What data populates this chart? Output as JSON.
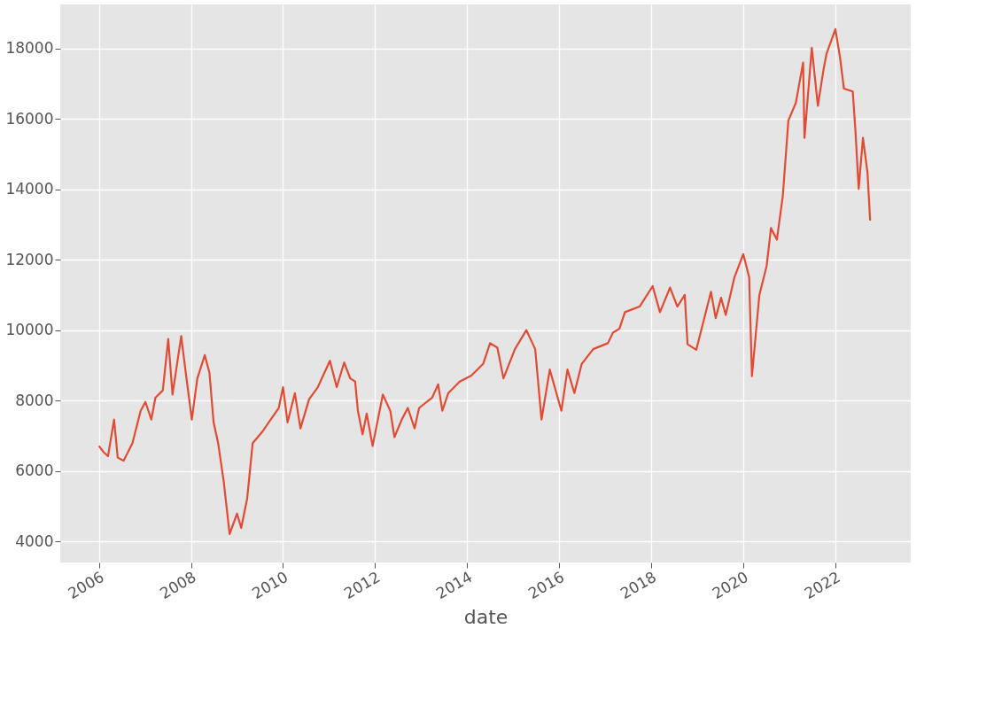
{
  "chart_data": {
    "type": "line",
    "xlabel": "date",
    "color": "#e24a33",
    "grid": true,
    "marker": "none",
    "line_style": "solid",
    "x": [
      "2006-01-01",
      "2006-02-06",
      "2006-03-14",
      "2006-05-01",
      "2006-05-30",
      "2006-07-16",
      "2006-09-24",
      "2006-11-28",
      "2007-01-05",
      "2007-02-21",
      "2007-03-25",
      "2007-05-23",
      "2007-07-05",
      "2007-08-08",
      "2007-09-13",
      "2007-10-16",
      "2007-11-21",
      "2008-01-08",
      "2008-02-21",
      "2008-04-20",
      "2008-05-27",
      "2008-06-29",
      "2008-08-04",
      "2008-09-17",
      "2008-11-03",
      "2009-01-01",
      "2009-02-03",
      "2009-03-22",
      "2009-05-05",
      "2009-07-24",
      "2009-09-09",
      "2009-11-28",
      "2010-01-01",
      "2010-02-06",
      "2010-04-05",
      "2010-05-19",
      "2010-07-27",
      "2010-10-04",
      "2011-01-08",
      "2011-03-03",
      "2011-05-01",
      "2011-06-18",
      "2011-07-27",
      "2011-08-18",
      "2011-09-24",
      "2011-10-27",
      "2011-12-13",
      "2012-03-03",
      "2012-05-01",
      "2012-06-03",
      "2012-07-31",
      "2012-09-17",
      "2012-11-10",
      "2012-12-16",
      "2013-03-29",
      "2013-05-16",
      "2013-06-18",
      "2013-08-04",
      "2013-11-03",
      "2014-02-03",
      "2014-05-08",
      "2014-07-02",
      "2014-08-29",
      "2014-10-16",
      "2015-01-15",
      "2015-04-16",
      "2015-06-25",
      "2015-08-14",
      "2015-10-19",
      "2016-01-19",
      "2016-03-07",
      "2016-05-01",
      "2016-06-28",
      "2016-09-27",
      "2017-01-22",
      "2017-03-03",
      "2017-04-23",
      "2017-06-06",
      "2017-10-01",
      "2018-01-12",
      "2018-03-11",
      "2018-05-30",
      "2018-07-27",
      "2018-09-24",
      "2018-10-16",
      "2018-12-24",
      "2019-04-20",
      "2019-05-27",
      "2019-07-09",
      "2019-08-15",
      "2019-10-23",
      "2020-01-01",
      "2020-02-17",
      "2020-03-10",
      "2020-05-08",
      "2020-07-05",
      "2020-08-08",
      "2020-09-24",
      "2020-11-10",
      "2020-12-24",
      "2021-02-21",
      "2021-04-20",
      "2021-05-01",
      "2021-06-28",
      "2021-08-15",
      "2021-10-01",
      "2021-10-23",
      "2022-01-01",
      "2022-02-06",
      "2022-03-10",
      "2022-05-19",
      "2022-06-10",
      "2022-07-05",
      "2022-08-08",
      "2022-09-13",
      "2022-10-04"
    ],
    "values": [
      6710,
      6540,
      6420,
      7460,
      6380,
      6290,
      6790,
      7710,
      7960,
      7460,
      8080,
      8290,
      9750,
      8170,
      9040,
      9830,
      8790,
      7460,
      8630,
      9290,
      8790,
      7380,
      6790,
      5710,
      4210,
      4790,
      4380,
      5210,
      6790,
      7130,
      7380,
      7790,
      8380,
      7380,
      8210,
      7210,
      8040,
      8380,
      9130,
      8380,
      9080,
      8630,
      8540,
      7710,
      7040,
      7630,
      6710,
      8170,
      7710,
      6960,
      7460,
      7790,
      7210,
      7790,
      8080,
      8460,
      7710,
      8210,
      8540,
      8710,
      9040,
      9630,
      9500,
      8630,
      9460,
      10000,
      9460,
      7460,
      8880,
      7710,
      8880,
      8210,
      9040,
      9460,
      9630,
      9930,
      10040,
      10510,
      10670,
      11250,
      10510,
      11210,
      10670,
      11000,
      9600,
      9440,
      11090,
      10340,
      10920,
      10430,
      11500,
      12160,
      11500,
      8690,
      11000,
      11830,
      12900,
      12570,
      13810,
      15950,
      16450,
      17600,
      15460,
      18020,
      16370,
      17440,
      17850,
      18550,
      17770,
      16860,
      16780,
      15620,
      14010,
      15460,
      14470,
      13110
    ],
    "xlim": [
      "2005-02-28",
      "2023-08-22"
    ],
    "xticks": [
      "2006",
      "2008",
      "2010",
      "2012",
      "2014",
      "2016",
      "2018",
      "2020",
      "2022"
    ],
    "ylim": [
      3400,
      19250
    ],
    "yticks": [
      4000,
      6000,
      8000,
      10000,
      12000,
      14000,
      16000,
      18000
    ]
  }
}
